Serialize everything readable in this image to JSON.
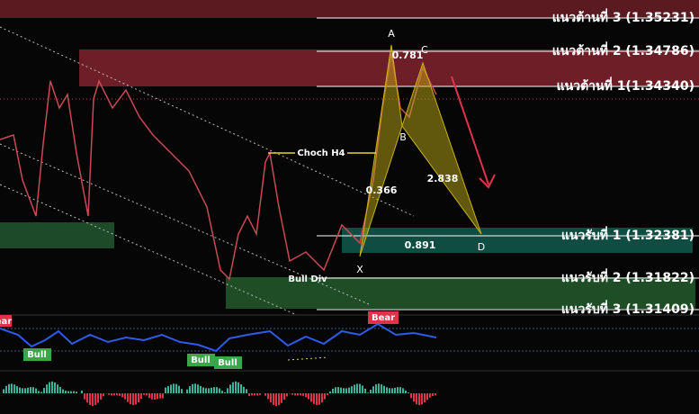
{
  "resistance": [
    "แนวต้านที่ 3 (1.35231)",
    "แนวต้านที่ 2 (1.34786)",
    "แนวต้านที่ 1(1.34340)"
  ],
  "support": [
    "แนวรับที่ 1 (1.32381)",
    "แนวรับที่ 2 (1.31822)",
    "แนวรับที่ 3 (1.31409)"
  ],
  "pattern": {
    "points": [
      "A",
      "C",
      "B",
      "X",
      "D"
    ],
    "ratios": [
      "0.781",
      "0.366",
      "2.838",
      "0.891"
    ]
  },
  "annotations": {
    "choch": "Choch H4",
    "bull_div": "Bull Div"
  },
  "indicator": {
    "labels": [
      "ear",
      "Bear",
      "Bull",
      "Bull",
      "Bull"
    ]
  }
}
